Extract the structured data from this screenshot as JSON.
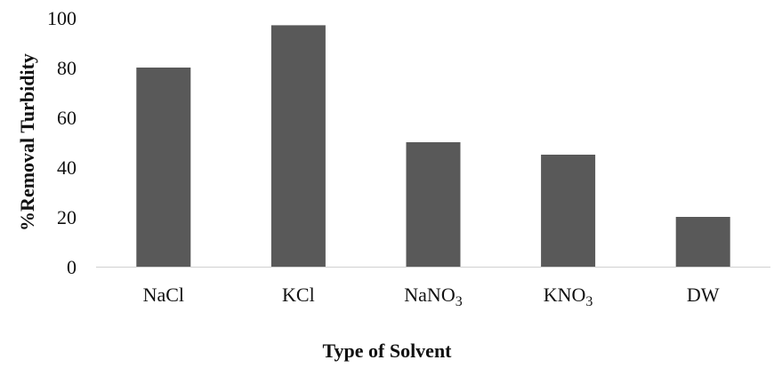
{
  "chart_data": {
    "type": "bar",
    "title": "",
    "xlabel": "Type of Solvent",
    "ylabel": "%Removal Turbidity",
    "categories": [
      {
        "base": "NaCl",
        "sub": ""
      },
      {
        "base": "KCl",
        "sub": ""
      },
      {
        "base": "NaNO",
        "sub": "3"
      },
      {
        "base": "KNO",
        "sub": "3"
      },
      {
        "base": "DW",
        "sub": ""
      }
    ],
    "values": [
      80,
      97,
      50,
      45,
      20
    ],
    "ylim": [
      0,
      100
    ],
    "yticks": [
      0,
      20,
      40,
      60,
      80,
      100
    ],
    "grid": false,
    "legend": "none",
    "bar_color": "#595959",
    "axis_color": "#d0d0d0"
  }
}
